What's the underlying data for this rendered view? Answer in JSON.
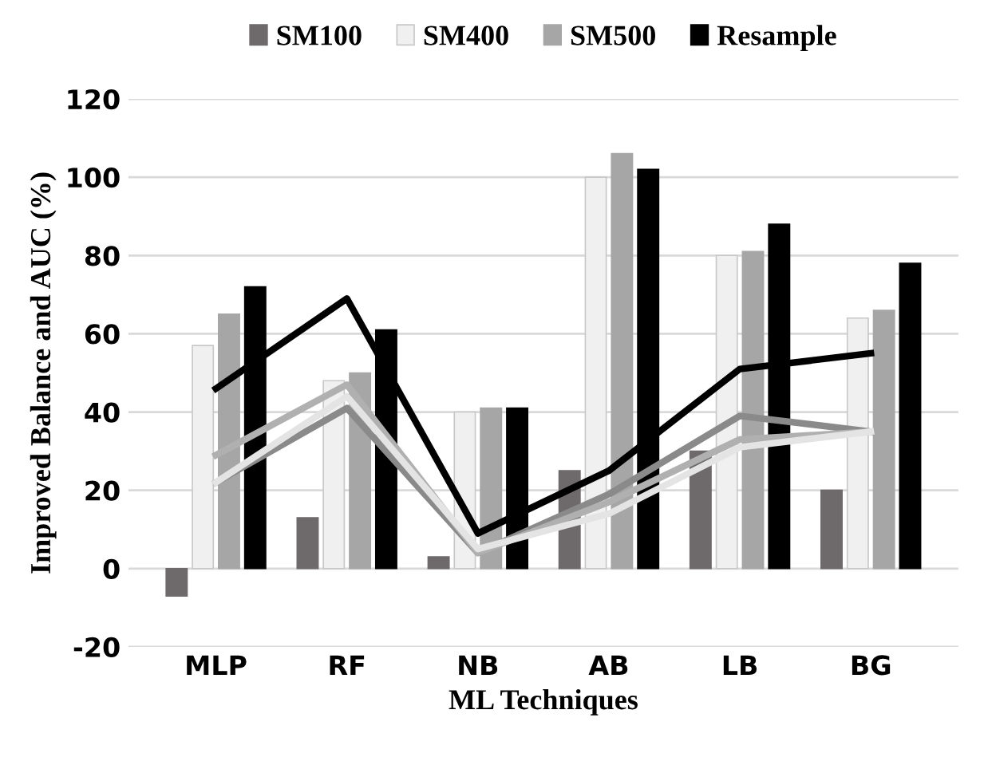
{
  "chart_data": {
    "type": "bar",
    "xlabel": "ML Techniques",
    "ylabel": "Improved Balance and AUC (%)",
    "categories": [
      "MLP",
      "RF",
      "NB",
      "AB",
      "LB",
      "BG"
    ],
    "series": [
      {
        "name": "SM100",
        "color": "#6e6a6c",
        "values": [
          -7,
          13,
          3,
          25,
          30,
          20
        ]
      },
      {
        "name": "SM400",
        "color": "#f0f0f0",
        "values": [
          57,
          48,
          40,
          100,
          80,
          64
        ]
      },
      {
        "name": "SM500",
        "color": "#a6a6a6",
        "values": [
          65,
          50,
          41,
          106,
          81,
          66
        ]
      },
      {
        "name": "Resample",
        "color": "#000000",
        "values": [
          72,
          61,
          41,
          102,
          88,
          78
        ]
      },
      {
        "type": "line",
        "color": "#000000",
        "values": [
          46,
          69,
          9,
          25,
          51,
          55
        ]
      },
      {
        "type": "line",
        "color": "#8a8a8a",
        "values": [
          22,
          41,
          4,
          19,
          39,
          35
        ]
      },
      {
        "type": "line",
        "color": "#b0b0b0",
        "values": [
          29,
          47,
          4,
          17,
          33,
          35
        ]
      },
      {
        "type": "line",
        "color": "#e4e4e4",
        "values": [
          22,
          44,
          5,
          14,
          31,
          35
        ]
      }
    ],
    "ylim": [
      -20,
      120
    ],
    "yticks": [
      -20,
      0,
      20,
      40,
      60,
      80,
      100,
      120
    ],
    "grid": "y",
    "legend": "top"
  }
}
